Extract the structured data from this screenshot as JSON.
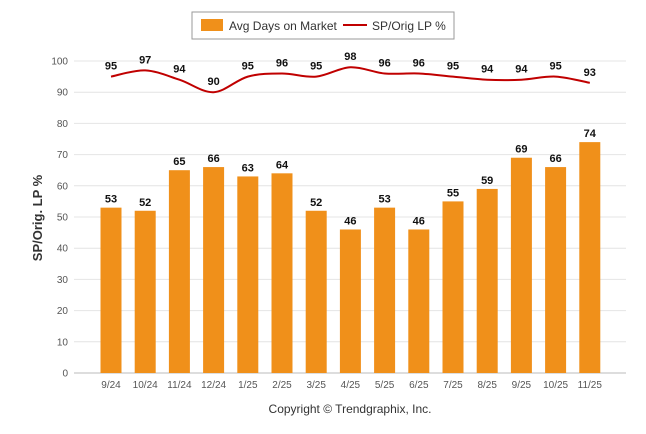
{
  "chart_data": {
    "type": "bar",
    "categories": [
      "9/24",
      "10/24",
      "11/24",
      "12/24",
      "1/25",
      "2/25",
      "3/25",
      "4/25",
      "5/25",
      "6/25",
      "7/25",
      "8/25",
      "9/25",
      "10/25",
      "11/25"
    ],
    "series": [
      {
        "name": "Avg Days on Market",
        "type": "bar",
        "color": "#f0901a",
        "values": [
          53,
          52,
          65,
          66,
          63,
          64,
          52,
          46,
          53,
          46,
          55,
          59,
          69,
          66,
          74
        ]
      },
      {
        "name": "SP/Orig LP %",
        "type": "line",
        "color": "#c00000",
        "values": [
          95,
          97,
          94,
          90,
          95,
          96,
          95,
          98,
          96,
          96,
          95,
          94,
          94,
          95,
          93
        ]
      }
    ],
    "ylabel": "SP/Orig. LP %",
    "ylim": [
      0,
      100
    ],
    "yticks": [
      0,
      10,
      20,
      30,
      40,
      50,
      60,
      70,
      80,
      90,
      100
    ],
    "grid": true,
    "legend": "top-center"
  },
  "footer": {
    "copyright": "Copyright © Trendgraphix, Inc."
  }
}
